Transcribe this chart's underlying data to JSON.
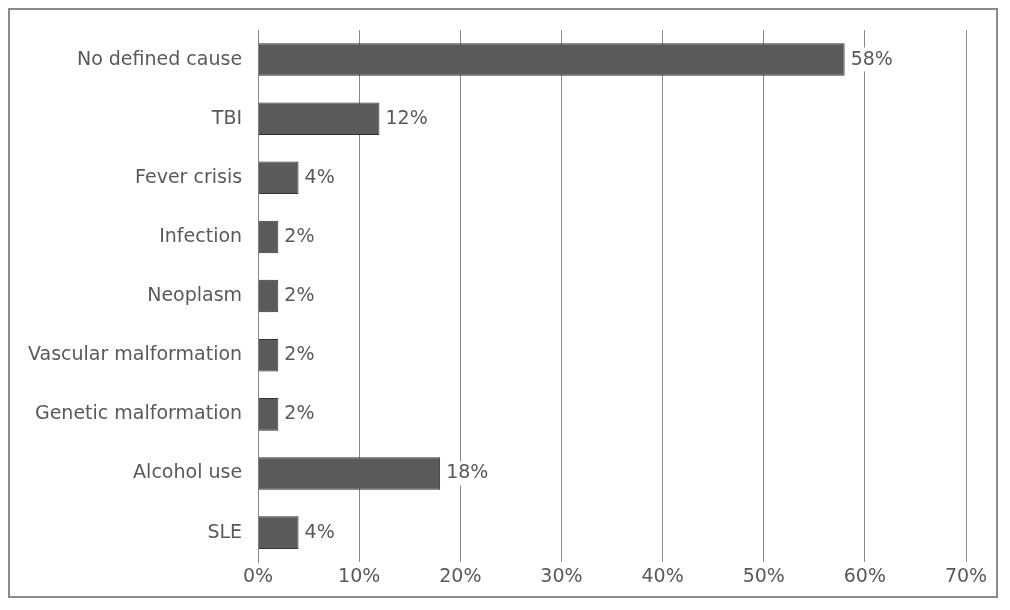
{
  "chart_data": {
    "type": "bar",
    "orientation": "horizontal",
    "categories": [
      "No defined cause",
      "TBI",
      "Fever crisis",
      "Infection",
      "Neoplasm",
      "Vascular malformation",
      "Genetic malformation",
      "Alcohol use",
      "SLE"
    ],
    "values": [
      58,
      12,
      4,
      2,
      2,
      2,
      2,
      18,
      4
    ],
    "value_labels": [
      "58%",
      "12%",
      "4%",
      "2%",
      "2%",
      "2%",
      "2%",
      "18%",
      "4%"
    ],
    "color": "#5a5a5a",
    "xlim": [
      0,
      70
    ],
    "xticks": [
      {
        "value": 0,
        "label": "0%"
      },
      {
        "value": 10,
        "label": "10%"
      },
      {
        "value": 20,
        "label": "20%"
      },
      {
        "value": 30,
        "label": "30%"
      },
      {
        "value": 40,
        "label": "40%"
      },
      {
        "value": 50,
        "label": "50%"
      },
      {
        "value": 60,
        "label": "60%"
      },
      {
        "value": 70,
        "label": "70%"
      }
    ],
    "grid": "x",
    "legend": false
  }
}
